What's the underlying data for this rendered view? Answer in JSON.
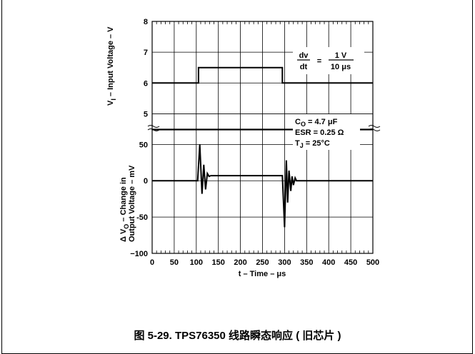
{
  "caption": "图 5-29. TPS76350 线路瞬态响应 ( 旧芯片 )",
  "chart_data": [
    {
      "type": "line",
      "title": "",
      "xlabel": "",
      "ylabel": "V_I – Input Voltage – V",
      "ylabel_main": "V",
      "ylabel_sub": "I",
      "ylabel_rest": " – Input Voltage – V",
      "xlim": [
        0,
        500
      ],
      "ylim": [
        4.5,
        8
      ],
      "yticks": [
        "5",
        "6",
        "7",
        "8"
      ],
      "grid": true,
      "series": [
        {
          "x": [
            0,
            105,
            105,
            295,
            295,
            500
          ],
          "y": [
            6,
            6,
            6.5,
            6.5,
            6,
            6
          ]
        }
      ],
      "annotation": {
        "dv": "dv",
        "dt": "dt",
        "eq": "=",
        "num": "1 V",
        "den": "10 μs"
      }
    },
    {
      "type": "line",
      "title": "",
      "xlabel": "t – Time – μs",
      "ylabel": "Δ V_O – Change in Output Voltage – mV",
      "ylabel_line1_pre": "Δ V",
      "ylabel_line1_sub": "O",
      "ylabel_line1_post": " – Change in",
      "ylabel_line2": "Output Voltage – mV",
      "xlim": [
        0,
        500
      ],
      "ylim": [
        -100,
        70
      ],
      "xticks": [
        "0",
        "50",
        "100",
        "150",
        "200",
        "250",
        "300",
        "350",
        "400",
        "450",
        "500"
      ],
      "yticks": [
        "−100",
        "-50",
        "0",
        "50"
      ],
      "grid": true,
      "series": [
        {
          "x": [
            0,
            103,
            108,
            113,
            117,
            121,
            125,
            129,
            133,
            295,
            300,
            304,
            307,
            310,
            314,
            317,
            320,
            324,
            327,
            330,
            500
          ],
          "y": [
            0,
            0,
            50,
            -18,
            22,
            -12,
            10,
            6,
            7,
            7,
            -64,
            28,
            -30,
            14,
            -14,
            6,
            -6,
            4,
            0,
            0,
            0
          ]
        }
      ],
      "conditions": {
        "c_main": "C",
        "c_sub": "O",
        "c_rest": " = 4.7 μF",
        "esr": "ESR = 0.25 Ω",
        "t_main": "T",
        "t_sub": "J",
        "t_rest": " = 25°C"
      }
    }
  ]
}
